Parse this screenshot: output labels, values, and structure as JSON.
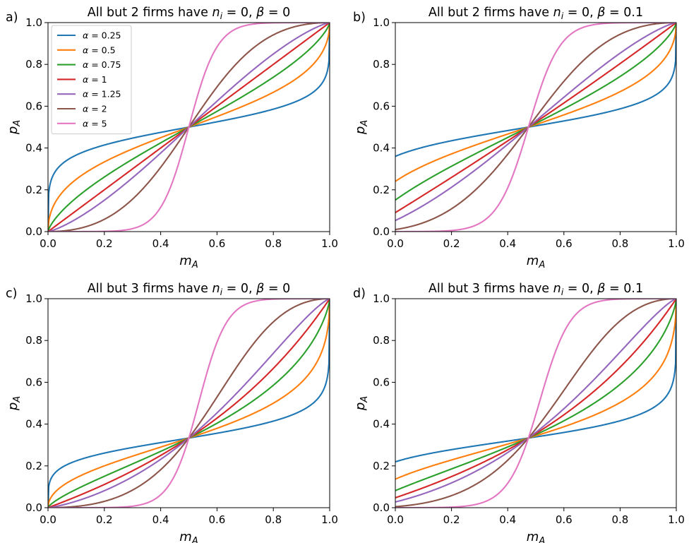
{
  "chart_data": [
    {
      "type": "line",
      "panel_label": "a)",
      "title": "All but 2 firms have n_i = 0, β = 0",
      "title_parts": {
        "prefix": "All but 2 firms have ",
        "var": "n",
        "sub": "i",
        "suffix1": " = 0, ",
        "greek": "β",
        "suffix2": " = 0"
      },
      "xlabel": "m_A",
      "ylabel": "p_A",
      "xlim": [
        0,
        1
      ],
      "ylim": [
        0,
        1
      ],
      "xticks": [
        "0.0",
        "0.2",
        "0.4",
        "0.6",
        "0.8",
        "1.0"
      ],
      "yticks": [
        "0.0",
        "0.2",
        "0.4",
        "0.6",
        "0.8",
        "1.0"
      ],
      "grid": false,
      "legend": "upper-left",
      "k": 2,
      "beta": 0,
      "series": [
        {
          "name": "α = 0.25",
          "alpha": 0.25,
          "color": "#1f77b4"
        },
        {
          "name": "α = 0.5",
          "alpha": 0.5,
          "color": "#ff7f0e"
        },
        {
          "name": "α = 0.75",
          "alpha": 0.75,
          "color": "#2ca02c"
        },
        {
          "name": "α = 1",
          "alpha": 1,
          "color": "#d62728"
        },
        {
          "name": "α = 1.25",
          "alpha": 1.25,
          "color": "#9467bd"
        },
        {
          "name": "α = 2",
          "alpha": 2,
          "color": "#8c564b"
        },
        {
          "name": "α = 5",
          "alpha": 5,
          "color": "#e377c2"
        }
      ]
    },
    {
      "type": "line",
      "panel_label": "b)",
      "title": "All but 2 firms have n_i = 0, β = 0.1",
      "title_parts": {
        "prefix": "All but 2 firms have ",
        "var": "n",
        "sub": "i",
        "suffix1": " = 0, ",
        "greek": "β",
        "suffix2": " = 0.1"
      },
      "xlabel": "m_A",
      "ylabel": "p_A",
      "xlim": [
        0,
        1
      ],
      "ylim": [
        0,
        1
      ],
      "xticks": [
        "0.0",
        "0.2",
        "0.4",
        "0.6",
        "0.8",
        "1.0"
      ],
      "yticks": [
        "0.0",
        "0.2",
        "0.4",
        "0.6",
        "0.8",
        "1.0"
      ],
      "grid": false,
      "k": 2,
      "beta": 0.1,
      "series": [
        {
          "alpha": 0.25,
          "color": "#1f77b4"
        },
        {
          "alpha": 0.5,
          "color": "#ff7f0e"
        },
        {
          "alpha": 0.75,
          "color": "#2ca02c"
        },
        {
          "alpha": 1,
          "color": "#d62728"
        },
        {
          "alpha": 1.25,
          "color": "#9467bd"
        },
        {
          "alpha": 2,
          "color": "#8c564b"
        },
        {
          "alpha": 5,
          "color": "#e377c2"
        }
      ]
    },
    {
      "type": "line",
      "panel_label": "c)",
      "title": "All but 3 firms have n_i = 0, β = 0",
      "title_parts": {
        "prefix": "All but 3 firms have ",
        "var": "n",
        "sub": "i",
        "suffix1": " = 0, ",
        "greek": "β",
        "suffix2": " = 0"
      },
      "xlabel": "m_A",
      "ylabel": "p_A",
      "xlim": [
        0,
        1
      ],
      "ylim": [
        0,
        1
      ],
      "xticks": [
        "0.0",
        "0.2",
        "0.4",
        "0.6",
        "0.8",
        "1.0"
      ],
      "yticks": [
        "0.0",
        "0.2",
        "0.4",
        "0.6",
        "0.8",
        "1.0"
      ],
      "grid": false,
      "k": 3,
      "beta": 0,
      "series": [
        {
          "alpha": 0.25,
          "color": "#1f77b4"
        },
        {
          "alpha": 0.5,
          "color": "#ff7f0e"
        },
        {
          "alpha": 0.75,
          "color": "#2ca02c"
        },
        {
          "alpha": 1,
          "color": "#d62728"
        },
        {
          "alpha": 1.25,
          "color": "#9467bd"
        },
        {
          "alpha": 2,
          "color": "#8c564b"
        },
        {
          "alpha": 5,
          "color": "#e377c2"
        }
      ]
    },
    {
      "type": "line",
      "panel_label": "d)",
      "title": "All but 3 firms have n_i = 0, β = 0.1",
      "title_parts": {
        "prefix": "All but 3 firms have ",
        "var": "n",
        "sub": "i",
        "suffix1": " = 0, ",
        "greek": "β",
        "suffix2": " = 0.1"
      },
      "xlabel": "m_A",
      "ylabel": "p_A",
      "xlim": [
        0,
        1
      ],
      "ylim": [
        0,
        1
      ],
      "xticks": [
        "0.0",
        "0.2",
        "0.4",
        "0.6",
        "0.8",
        "1.0"
      ],
      "yticks": [
        "0.0",
        "0.2",
        "0.4",
        "0.6",
        "0.8",
        "1.0"
      ],
      "grid": false,
      "k": 3,
      "beta": 0.1,
      "series": [
        {
          "alpha": 0.25,
          "color": "#1f77b4"
        },
        {
          "alpha": 0.5,
          "color": "#ff7f0e"
        },
        {
          "alpha": 0.75,
          "color": "#2ca02c"
        },
        {
          "alpha": 1,
          "color": "#d62728"
        },
        {
          "alpha": 1.25,
          "color": "#9467bd"
        },
        {
          "alpha": 2,
          "color": "#8c564b"
        },
        {
          "alpha": 5,
          "color": "#e377c2"
        }
      ]
    }
  ]
}
